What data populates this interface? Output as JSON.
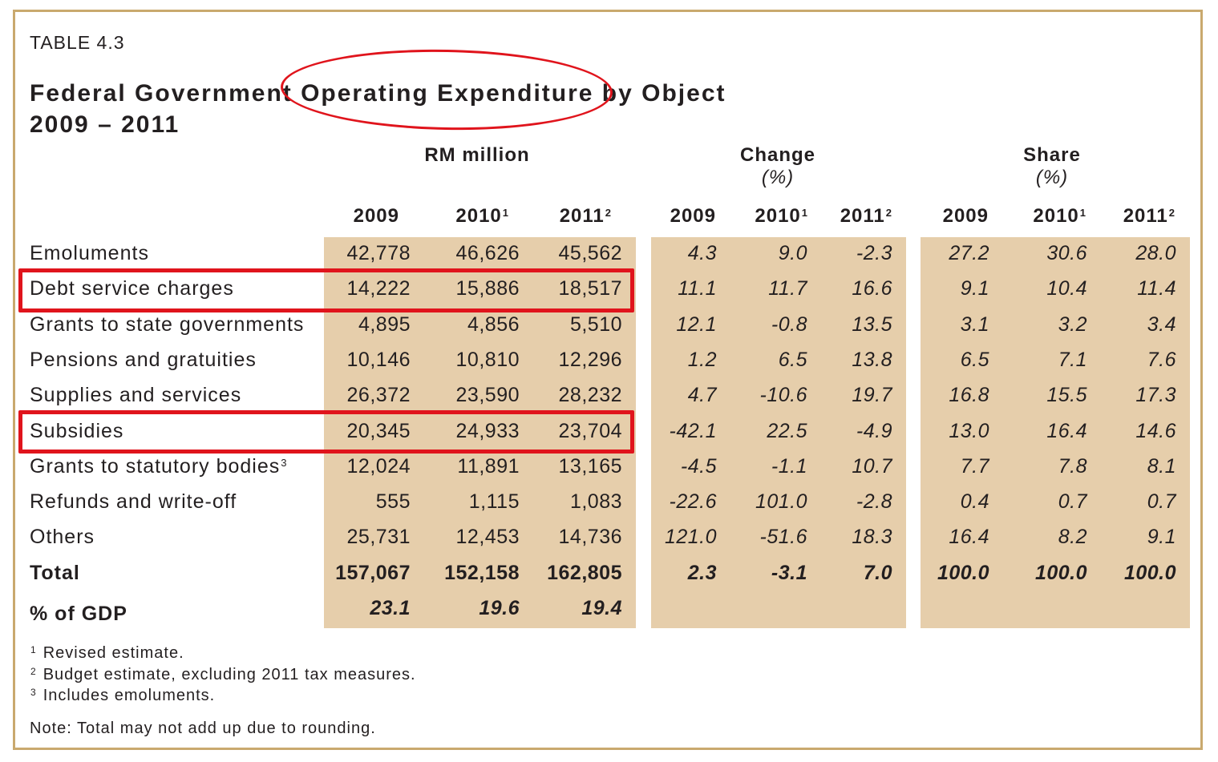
{
  "table_id": "TABLE 4.3",
  "title_line1": "Federal Government Operating Expenditure by Object",
  "title_line2": "2009 – 2011",
  "groups": {
    "rm": "RM million",
    "change": "Change",
    "change_unit": "(%)",
    "share": "Share",
    "share_unit": "(%)"
  },
  "years": {
    "y2009": "2009",
    "y2010": "2010",
    "y2011": "2011",
    "n1": "1",
    "n2": "2"
  },
  "rows": [
    {
      "label": "Emoluments",
      "rm": [
        "42,778",
        "46,626",
        "45,562"
      ],
      "chg": [
        "4.3",
        "9.0",
        "-2.3"
      ],
      "share": [
        "27.2",
        "30.6",
        "28.0"
      ]
    },
    {
      "label": "Debt service charges",
      "rm": [
        "14,222",
        "15,886",
        "18,517"
      ],
      "chg": [
        "11.1",
        "11.7",
        "16.6"
      ],
      "share": [
        "9.1",
        "10.4",
        "11.4"
      ]
    },
    {
      "label": "Grants to state governments",
      "rm": [
        "4,895",
        "4,856",
        "5,510"
      ],
      "chg": [
        "12.1",
        "-0.8",
        "13.5"
      ],
      "share": [
        "3.1",
        "3.2",
        "3.4"
      ]
    },
    {
      "label": "Pensions and gratuities",
      "rm": [
        "10,146",
        "10,810",
        "12,296"
      ],
      "chg": [
        "1.2",
        "6.5",
        "13.8"
      ],
      "share": [
        "6.5",
        "7.1",
        "7.6"
      ]
    },
    {
      "label": "Supplies and services",
      "rm": [
        "26,372",
        "23,590",
        "28,232"
      ],
      "chg": [
        "4.7",
        "-10.6",
        "19.7"
      ],
      "share": [
        "16.8",
        "15.5",
        "17.3"
      ]
    },
    {
      "label": "Subsidies",
      "rm": [
        "20,345",
        "24,933",
        "23,704"
      ],
      "chg": [
        "-42.1",
        "22.5",
        "-4.9"
      ],
      "share": [
        "13.0",
        "16.4",
        "14.6"
      ]
    },
    {
      "label": "Grants to statutory bodies",
      "note": "3",
      "rm": [
        "12,024",
        "11,891",
        "13,165"
      ],
      "chg": [
        "-4.5",
        "-1.1",
        "10.7"
      ],
      "share": [
        "7.7",
        "7.8",
        "8.1"
      ]
    },
    {
      "label": "Refunds and write-off",
      "rm": [
        "555",
        "1,115",
        "1,083"
      ],
      "chg": [
        "-22.6",
        "101.0",
        "-2.8"
      ],
      "share": [
        "0.4",
        "0.7",
        "0.7"
      ]
    },
    {
      "label": "Others",
      "rm": [
        "25,731",
        "12,453",
        "14,736"
      ],
      "chg": [
        "121.0",
        "-51.6",
        "18.3"
      ],
      "share": [
        "16.4",
        "8.2",
        "9.1"
      ]
    }
  ],
  "total": {
    "label": "Total",
    "rm": [
      "157,067",
      "152,158",
      "162,805"
    ],
    "chg": [
      "2.3",
      "-3.1",
      "7.0"
    ],
    "share": [
      "100.0",
      "100.0",
      "100.0"
    ]
  },
  "gdp": {
    "label": "% of GDP",
    "rm": [
      "23.1",
      "19.6",
      "19.4"
    ]
  },
  "footnotes": [
    {
      "mark": "1",
      "text": "Revised estimate."
    },
    {
      "mark": "2",
      "text": "Budget estimate, excluding 2011 tax measures."
    },
    {
      "mark": "3",
      "text": "Includes emoluments."
    }
  ],
  "note": "Note: Total may not add up due to rounding."
}
